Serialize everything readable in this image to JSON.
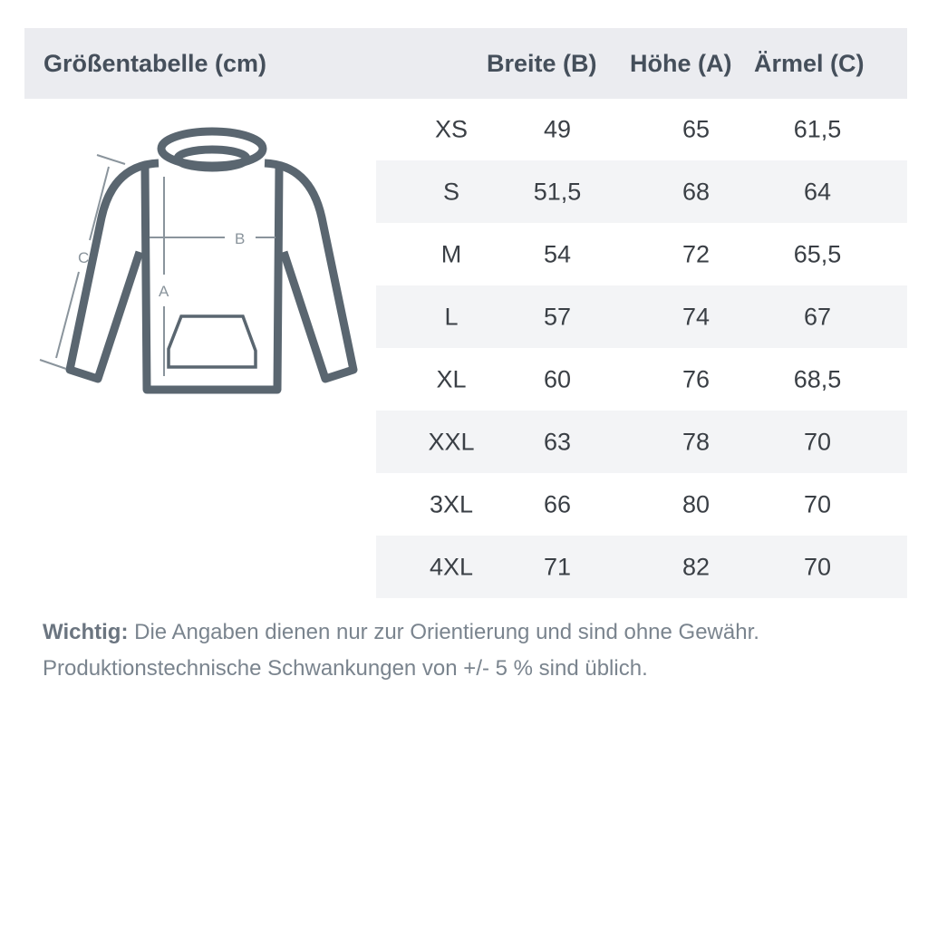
{
  "header": {
    "title": "Größentabelle (cm)",
    "columns": [
      "Breite (B)",
      "Höhe (A)",
      "Ärmel (C)"
    ]
  },
  "diagram": {
    "labels": {
      "a": "A",
      "b": "B",
      "c": "C"
    },
    "outline_color": "#5a6670",
    "arrow_color": "#8a949c"
  },
  "rows": [
    {
      "size": "XS",
      "breite": "49",
      "hoehe": "65",
      "aermel": "61,5"
    },
    {
      "size": "S",
      "breite": "51,5",
      "hoehe": "68",
      "aermel": "64"
    },
    {
      "size": "M",
      "breite": "54",
      "hoehe": "72",
      "aermel": "65,5"
    },
    {
      "size": "L",
      "breite": "57",
      "hoehe": "74",
      "aermel": "67"
    },
    {
      "size": "XL",
      "breite": "60",
      "hoehe": "76",
      "aermel": "68,5"
    },
    {
      "size": "XXL",
      "breite": "63",
      "hoehe": "78",
      "aermel": "70"
    },
    {
      "size": "3XL",
      "breite": "66",
      "hoehe": "80",
      "aermel": "70"
    },
    {
      "size": "4XL",
      "breite": "71",
      "hoehe": "82",
      "aermel": "70"
    }
  ],
  "note": {
    "label": "Wichtig:",
    "line1": "Die Angaben dienen nur zur Orientierung und sind ohne Gewähr.",
    "line2": "Produktionstechnische Schwankungen von +/- 5 % sind üblich."
  }
}
